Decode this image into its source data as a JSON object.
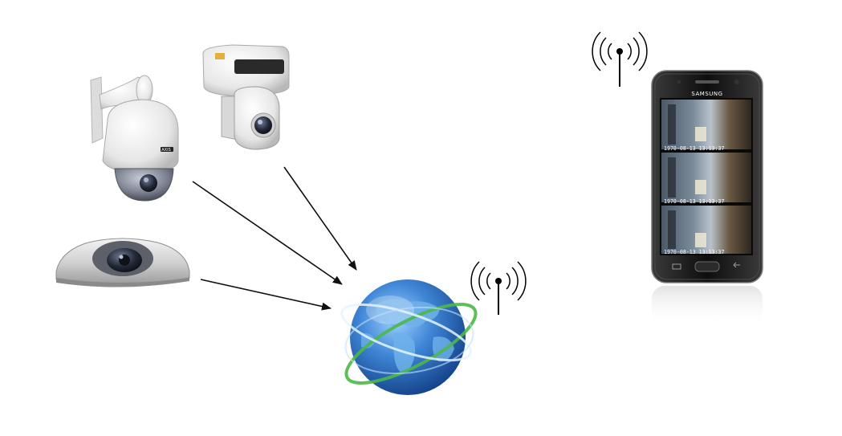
{
  "diagram": {
    "nodes": [
      {
        "id": "ptz-dome-camera",
        "icon": "ptz-dome-camera-icon"
      },
      {
        "id": "pan-tilt-camera",
        "icon": "pan-tilt-camera-icon"
      },
      {
        "id": "mini-dome-camera",
        "icon": "mini-dome-camera-icon"
      },
      {
        "id": "internet-globe",
        "icon": "globe-icon"
      },
      {
        "id": "smartphone",
        "icon": "smartphone-icon"
      }
    ],
    "edges": [
      {
        "from": "ptz-dome-camera",
        "to": "internet-globe"
      },
      {
        "from": "pan-tilt-camera",
        "to": "internet-globe"
      },
      {
        "from": "mini-dome-camera",
        "to": "internet-globe"
      }
    ],
    "wireless_icons": [
      "wireless-antenna-icon",
      "wireless-antenna-icon"
    ]
  },
  "camera_brand": "AXIS",
  "phone": {
    "brand": "SAMSUNG",
    "video_feeds": [
      {
        "timestamp": "1970-08-13 13:13:37"
      },
      {
        "timestamp": "1970-08-13 13:13:37"
      },
      {
        "timestamp": "1970-08-13 13:13:37"
      }
    ]
  },
  "colors": {
    "arrow": "#111111",
    "globe_ocean": "#2f6fc4",
    "globe_ring_green": "#4cb848",
    "phone_body": "#1a1a1a"
  }
}
